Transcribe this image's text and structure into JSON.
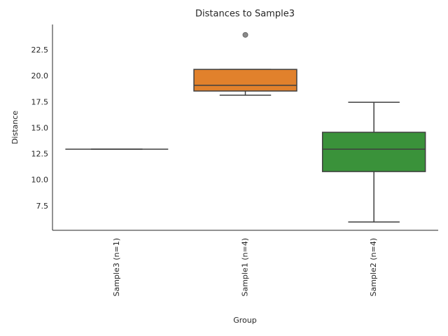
{
  "chart_data": {
    "type": "box",
    "title": "Distances to Sample3",
    "x_label": "Group",
    "y_label": "Distance",
    "categories": [
      "Sample3 (n=1)",
      "Sample1 (n=4)",
      "Sample2 (n=4)"
    ],
    "colors": [
      "#3274a1",
      "#e1812c",
      "#3a923a"
    ],
    "boxes": [
      {
        "min": 13.0,
        "q1": 13.0,
        "median": 13.0,
        "q3": 13.0,
        "max": 13.0
      },
      {
        "min": 18.2,
        "q1": 18.6,
        "median": 19.15,
        "q3": 20.68,
        "max": 20.68,
        "outliers": [
          24.0
        ]
      },
      {
        "min": 6.0,
        "q1": 10.85,
        "median": 13.0,
        "q3": 14.63,
        "max": 17.52
      }
    ],
    "ylim": [
      5.2,
      25.0
    ],
    "yticks": [
      7.5,
      {
        "value": 10,
        "label": "10.0"
      },
      12.5,
      {
        "value": 15,
        "label": "15.0"
      },
      17.5,
      {
        "value": 20,
        "label": "20.0"
      },
      22.5
    ],
    "grid": false
  }
}
